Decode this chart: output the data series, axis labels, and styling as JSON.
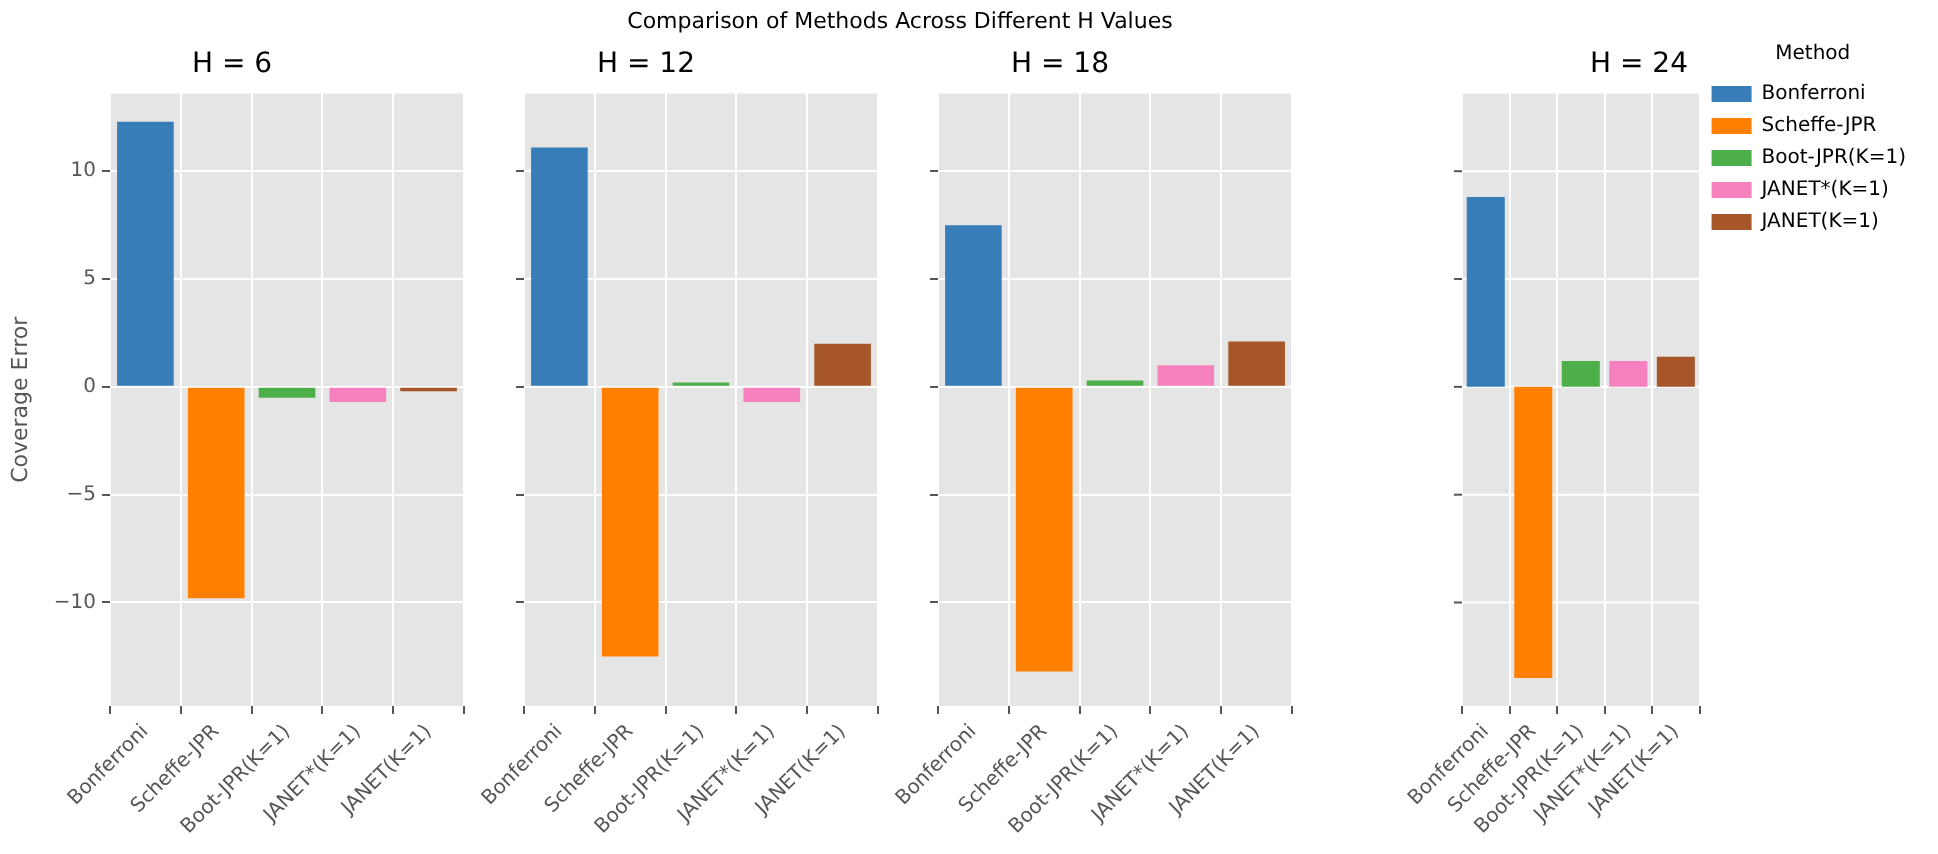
{
  "chart_data": [
    {
      "type": "bar",
      "title": "H = 6",
      "ylabel": "Coverage Error",
      "annotations": [
        "Comparison of Methods Across Different H Values"
      ],
      "categories": [
        "Bonferroni",
        "Scheffe-JPR",
        "Boot-JPR(K=1)",
        "JANET*(K=1)",
        "JANET(K=1)"
      ],
      "series": [
        {
          "color": "#377eb8",
          "values": [
            12.3,
            null,
            null,
            null,
            null
          ]
        },
        {
          "color": "#ff7f00",
          "values": [
            null,
            -9.8,
            null,
            null,
            null
          ]
        },
        {
          "color": "#4daf4a",
          "values": [
            null,
            null,
            -0.5,
            null,
            null
          ]
        },
        {
          "color": "#f781bf",
          "values": [
            null,
            null,
            null,
            -0.7,
            null
          ]
        },
        {
          "color": "#a65628",
          "values": [
            null,
            null,
            null,
            null,
            -0.2
          ]
        }
      ],
      "ylim": [
        -14.8,
        13.6
      ],
      "yticks": [
        {
          "value": -10,
          "label": "−10"
        },
        {
          "value": -5,
          "label": "−5"
        },
        0,
        5,
        10
      ],
      "grid": true
    },
    {
      "type": "bar",
      "title": "H = 12",
      "categories": [
        "Bonferroni",
        "Scheffe-JPR",
        "Boot-JPR(K=1)",
        "JANET*(K=1)",
        "JANET(K=1)"
      ],
      "series": [
        {
          "color": "#377eb8",
          "values": [
            11.1,
            null,
            null,
            null,
            null
          ]
        },
        {
          "color": "#ff7f00",
          "values": [
            null,
            -12.5,
            null,
            null,
            null
          ]
        },
        {
          "color": "#4daf4a",
          "values": [
            null,
            null,
            0.2,
            null,
            null
          ]
        },
        {
          "color": "#f781bf",
          "values": [
            null,
            null,
            null,
            -0.7,
            null
          ]
        },
        {
          "color": "#a65628",
          "values": [
            null,
            null,
            null,
            null,
            2.0
          ]
        }
      ],
      "ylim": [
        -14.8,
        13.6
      ],
      "yticks": [
        -10,
        -5,
        0,
        5,
        10
      ],
      "grid": true,
      "tick_labels": "x"
    },
    {
      "type": "bar",
      "title": "H = 18",
      "categories": [
        "Bonferroni",
        "Scheffe-JPR",
        "Boot-JPR(K=1)",
        "JANET*(K=1)",
        "JANET(K=1)"
      ],
      "series": [
        {
          "color": "#377eb8",
          "values": [
            7.5,
            null,
            null,
            null,
            null
          ]
        },
        {
          "color": "#ff7f00",
          "values": [
            null,
            -13.2,
            null,
            null,
            null
          ]
        },
        {
          "color": "#4daf4a",
          "values": [
            null,
            null,
            0.3,
            null,
            null
          ]
        },
        {
          "color": "#f781bf",
          "values": [
            null,
            null,
            null,
            1.0,
            null
          ]
        },
        {
          "color": "#a65628",
          "values": [
            null,
            null,
            null,
            null,
            2.1
          ]
        }
      ],
      "ylim": [
        -14.8,
        13.6
      ],
      "yticks": [
        -10,
        -5,
        0,
        5,
        10
      ],
      "grid": true,
      "tick_labels": "x"
    },
    {
      "type": "bar",
      "title": "H = 24",
      "legend": "top right",
      "legend_title": "Method",
      "categories": [
        "Bonferroni",
        "Scheffe-JPR",
        "Boot-JPR(K=1)",
        "JANET*(K=1)",
        "JANET(K=1)"
      ],
      "series": [
        {
          "name": "Bonferroni",
          "color": "#377eb8",
          "values": [
            8.8,
            null,
            null,
            null,
            null
          ]
        },
        {
          "name": "Scheffe-JPR",
          "color": "#ff7f00",
          "values": [
            null,
            -13.5,
            null,
            null,
            null
          ]
        },
        {
          "name": "Boot-JPR(K=1)",
          "color": "#4daf4a",
          "values": [
            null,
            null,
            1.2,
            null,
            null
          ]
        },
        {
          "name": "JANET*(K=1)",
          "color": "#f781bf",
          "values": [
            null,
            null,
            null,
            1.2,
            null
          ]
        },
        {
          "name": "JANET(K=1)",
          "color": "#a65628",
          "values": [
            null,
            null,
            null,
            null,
            1.4
          ]
        }
      ],
      "ylim": [
        -14.8,
        13.6
      ],
      "yticks": [
        -10,
        -5,
        0,
        5,
        10
      ],
      "grid": true,
      "tick_labels": "x"
    }
  ]
}
